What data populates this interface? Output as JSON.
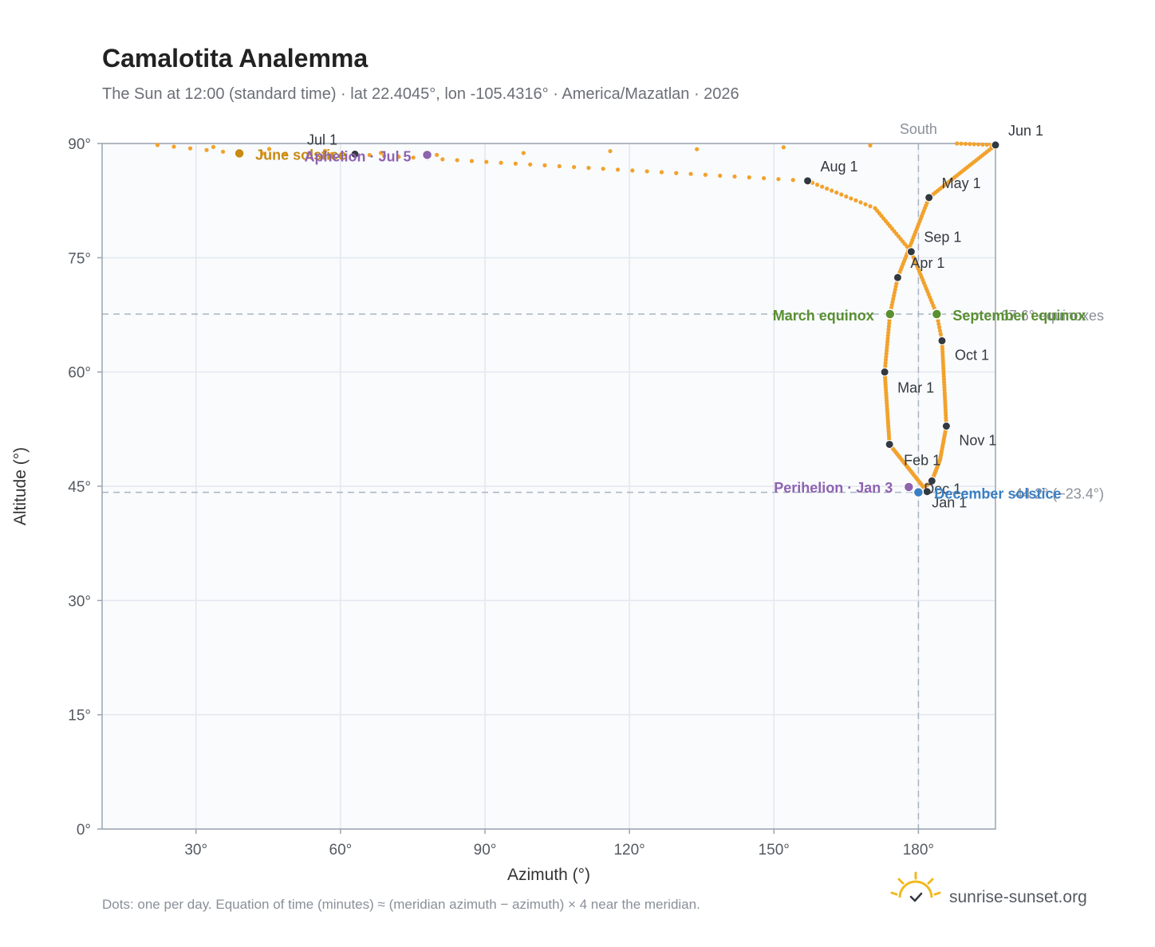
{
  "header": {
    "title": "Camalotita Analemma",
    "subtitle": "The Sun at 12:00 (standard time) · lat 22.4045°, lon -105.4316° · America/Mazatlan · 2026"
  },
  "footer": {
    "note": "Dots: one per day. Equation of time (minutes) ≈ (meridian azimuth − azimuth) × 4 near the meridian.",
    "brand": "sunrise-sunset.org",
    "brand_icon": "sun-logo-icon"
  },
  "colors": {
    "path": "#f2a22c",
    "month_dot": "#333940",
    "solstice_june": "#c88a12",
    "solstice_december": "#3a7fc4",
    "equinox": "#5a8f32",
    "apsis": "#8e63b0",
    "reference": "#a9b4c1"
  },
  "chart_data": {
    "type": "scatter",
    "xlabel": "Azimuth (°)",
    "ylabel": "Altitude (°)",
    "xlim": [
      10.5,
      196
    ],
    "ylim": [
      0,
      90
    ],
    "x_ticks": [
      30,
      60,
      90,
      120,
      150,
      180
    ],
    "x_tick_labels": [
      "30°",
      "60°",
      "90°",
      "120°",
      "150°",
      "180°"
    ],
    "y_ticks": [
      0,
      15,
      30,
      45,
      60,
      75,
      90
    ],
    "y_tick_labels": [
      "0°",
      "15°",
      "30°",
      "45°",
      "60°",
      "75°",
      "90°"
    ],
    "grid": true,
    "path_key_points": [
      {
        "doy": 0,
        "az": 181.8,
        "alt": 44.3
      },
      {
        "doy": 31,
        "az": 174.0,
        "alt": 50.5
      },
      {
        "doy": 59,
        "az": 173.0,
        "alt": 60.0
      },
      {
        "doy": 78,
        "az": 174.1,
        "alt": 67.6
      },
      {
        "doy": 90,
        "az": 175.7,
        "alt": 72.4
      },
      {
        "doy": 120,
        "az": 182.2,
        "alt": 82.9
      },
      {
        "doy": 151,
        "az": 196.0,
        "alt": 89.8
      },
      {
        "doy": 160,
        "az": 188.0,
        "alt": 90.0
      },
      {
        "doy": 166,
        "az": 80.0,
        "alt": 88.5
      },
      {
        "doy": 171,
        "az": 22.0,
        "alt": 89.8
      },
      {
        "doy": 176,
        "az": 39.0,
        "alt": 88.7
      },
      {
        "doy": 181,
        "az": 63.0,
        "alt": 88.6
      },
      {
        "doy": 212,
        "az": 157.0,
        "alt": 85.1
      },
      {
        "doy": 226,
        "az": 171.0,
        "alt": 81.5
      },
      {
        "doy": 243,
        "az": 178.5,
        "alt": 75.8
      },
      {
        "doy": 265,
        "az": 183.8,
        "alt": 67.6
      },
      {
        "doy": 273,
        "az": 184.9,
        "alt": 64.1
      },
      {
        "doy": 304,
        "az": 185.8,
        "alt": 52.9
      },
      {
        "doy": 319,
        "az": 184.5,
        "alt": 48.5
      },
      {
        "doy": 334,
        "az": 182.8,
        "alt": 45.7
      },
      {
        "doy": 354,
        "az": 180.0,
        "alt": 44.2
      },
      {
        "doy": 365,
        "az": 181.8,
        "alt": 44.3
      }
    ],
    "months": [
      {
        "label": "Jan 1",
        "az": 181.8,
        "alt": 44.3,
        "dx": 6,
        "dy": 20
      },
      {
        "label": "Feb 1",
        "az": 174.0,
        "alt": 50.5,
        "dx": 18,
        "dy": 26
      },
      {
        "label": "Mar 1",
        "az": 173.0,
        "alt": 60.0,
        "dx": 16,
        "dy": 26
      },
      {
        "label": "Apr 1",
        "az": 175.7,
        "alt": 72.4,
        "dx": 16,
        "dy": -12
      },
      {
        "label": "May 1",
        "az": 182.2,
        "alt": 82.9,
        "dx": 16,
        "dy": -12
      },
      {
        "label": "Jun 1",
        "az": 196.0,
        "alt": 89.8,
        "dx": 16,
        "dy": -12
      },
      {
        "label": "Jul 1",
        "az": 63.0,
        "alt": 88.6,
        "dx": -60,
        "dy": -12
      },
      {
        "label": "Aug 1",
        "az": 157.0,
        "alt": 85.1,
        "dx": 16,
        "dy": -12
      },
      {
        "label": "Sep 1",
        "az": 178.5,
        "alt": 75.8,
        "dx": 16,
        "dy": -12
      },
      {
        "label": "Oct 1",
        "az": 184.9,
        "alt": 64.1,
        "dx": 16,
        "dy": 24
      },
      {
        "label": "Nov 1",
        "az": 185.8,
        "alt": 52.9,
        "dx": 16,
        "dy": 24
      },
      {
        "label": "Dec 1",
        "az": 182.8,
        "alt": 45.7,
        "dx": -10,
        "dy": 16
      }
    ],
    "events": [
      {
        "label": "June solstice",
        "az": 39.0,
        "alt": 88.7,
        "color": "#c88a12",
        "anchor": "start",
        "dx": 20,
        "dy": 8
      },
      {
        "label": "Aphelion · Jul 5",
        "az": 78.0,
        "alt": 88.5,
        "color": "#8e63b0",
        "anchor": "end",
        "dx": -20,
        "dy": 8
      },
      {
        "label": "March equinox",
        "az": 174.1,
        "alt": 67.6,
        "color": "#5a8f32",
        "anchor": "end",
        "dx": -20,
        "dy": 8
      },
      {
        "label": "September equinox",
        "az": 183.8,
        "alt": 67.6,
        "color": "#5a8f32",
        "anchor": "start",
        "dx": 20,
        "dy": 8
      },
      {
        "label": "Perihelion · Jan 3",
        "az": 178.0,
        "alt": 44.9,
        "color": "#8e63b0",
        "anchor": "end",
        "dx": -20,
        "dy": 7
      },
      {
        "label": "December solstice",
        "az": 180.0,
        "alt": 44.2,
        "color": "#3a7fc4",
        "anchor": "start",
        "dx": 20,
        "dy": 8
      }
    ],
    "reference_lines": [
      {
        "orientation": "vertical",
        "value": 180,
        "label": "South"
      },
      {
        "orientation": "horizontal",
        "value": 67.6,
        "label": "67.6° equinoxes"
      },
      {
        "orientation": "horizontal",
        "value": 44.2,
        "label": "44.2° (−23.4°)"
      }
    ]
  }
}
